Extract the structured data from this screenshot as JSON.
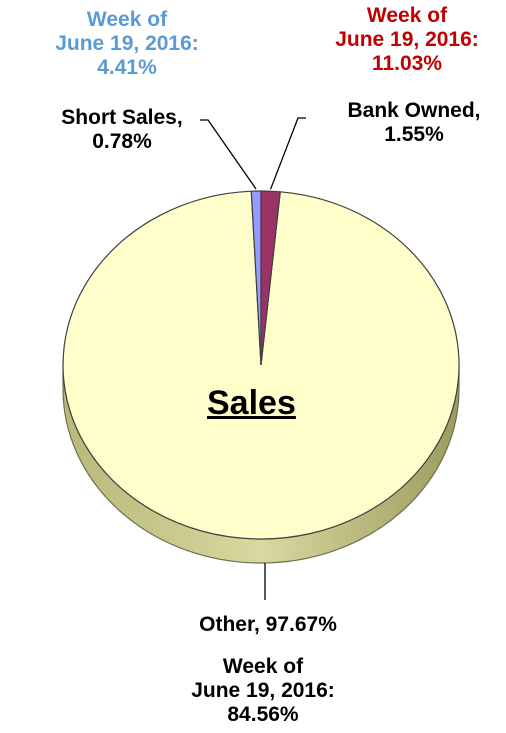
{
  "chart_data": {
    "type": "pie",
    "title": "Sales",
    "slices": [
      {
        "name": "Other",
        "value": 97.67,
        "label": "Other, 97.67%",
        "color": "#ffffcc"
      },
      {
        "name": "Short Sales",
        "value": 0.78,
        "label": "Short Sales,\n0.78%",
        "color": "#9999ff"
      },
      {
        "name": "Bank Owned",
        "value": 1.55,
        "label": "Bank Owned,\n1.55%",
        "color": "#993366"
      }
    ],
    "annotations": {
      "short_sales_prior": "Week of\nJune 19, 2016:\n4.41%",
      "bank_owned_prior": "Week of\nJune 19, 2016:\n11.03%",
      "other_prior": "Week of\nJune 19, 2016:\n84.56%"
    },
    "colors": {
      "short_sales_prior": "#5b9bd5",
      "bank_owned_prior": "#c00000",
      "labels": "#000000",
      "side": "#c9c98f"
    },
    "style": "3d-pie",
    "legend": "none"
  }
}
